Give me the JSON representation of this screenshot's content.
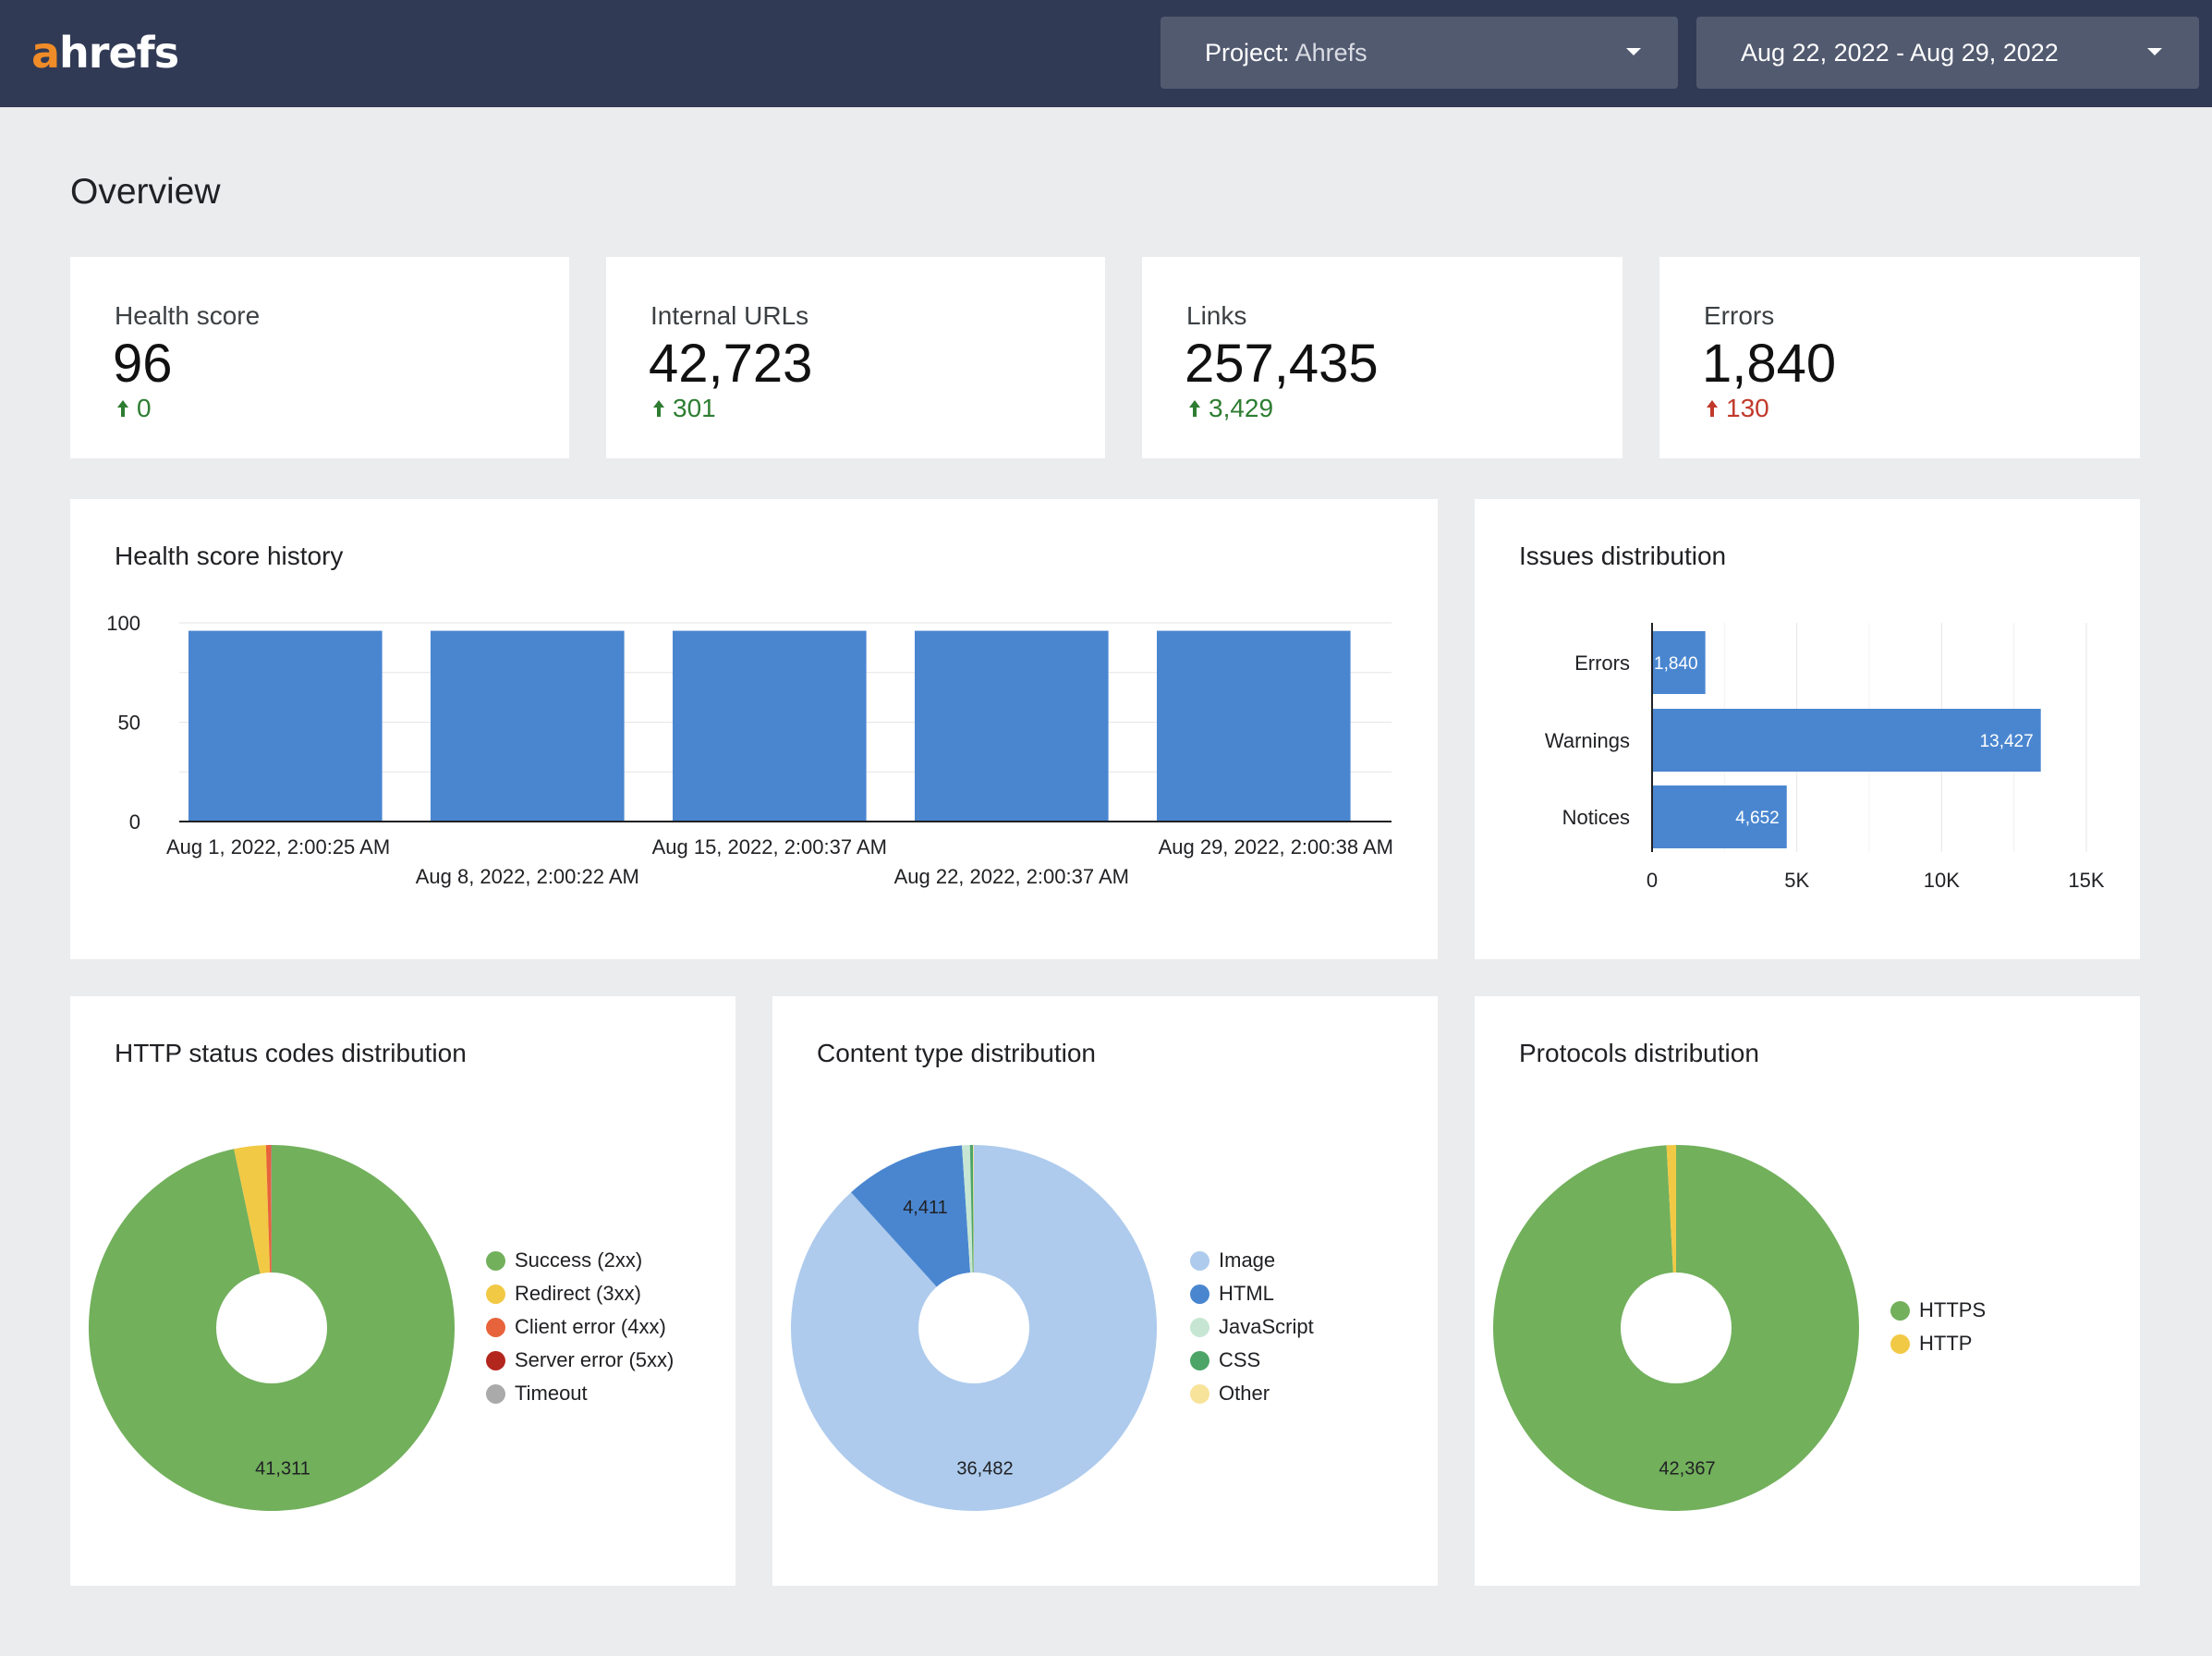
{
  "brand": {
    "logo_first": "a",
    "logo_rest": "hrefs"
  },
  "header": {
    "project_label": "Project:",
    "project_value": "Ahrefs",
    "date_range": "Aug 22, 2022 - Aug 29, 2022"
  },
  "page": {
    "title": "Overview"
  },
  "kpis": [
    {
      "label": "Health score",
      "value": "96",
      "delta": "0",
      "trend": "up"
    },
    {
      "label": "Internal URLs",
      "value": "42,723",
      "delta": "301",
      "trend": "up"
    },
    {
      "label": "Links",
      "value": "257,435",
      "delta": "3,429",
      "trend": "up"
    },
    {
      "label": "Errors",
      "value": "1,840",
      "delta": "130",
      "trend": "up"
    }
  ],
  "colors": {
    "header_bg": "#313a55",
    "dropdown_bg": "#525a70",
    "accent_orange": "#f08c28",
    "bar_blue": "#4a86d0",
    "positive": "#2e7d32",
    "negative": "#c0392b"
  },
  "chart_data": [
    {
      "type": "bar",
      "title": "Health score history",
      "categories": [
        "Aug 1, 2022, 2:00:25 AM",
        "Aug 8, 2022, 2:00:22 AM",
        "Aug 15, 2022, 2:00:37 AM",
        "Aug 22, 2022, 2:00:37 AM",
        "Aug 29, 2022, 2:00:38 AM"
      ],
      "values": [
        96,
        96,
        96,
        96,
        96
      ],
      "ylim": [
        0,
        100
      ],
      "y_ticks": [
        "0",
        "50",
        "100"
      ],
      "grid": true,
      "color": "#4a86d0"
    },
    {
      "type": "bar",
      "orientation": "horizontal",
      "title": "Issues distribution",
      "categories": [
        "Errors",
        "Warnings",
        "Notices"
      ],
      "values": [
        1840,
        13427,
        4652
      ],
      "value_labels": [
        "1,840",
        "13,427",
        "4,652"
      ],
      "xlim": [
        0,
        15000
      ],
      "x_ticks": [
        {
          "value": 0,
          "label": "0"
        },
        {
          "value": 5000,
          "label": "5K"
        },
        {
          "value": 10000,
          "label": "10K"
        },
        {
          "value": 15000,
          "label": "15K"
        }
      ],
      "grid": true,
      "color": "#4a86d0"
    },
    {
      "type": "pie",
      "title": "HTTP status codes distribution",
      "hole": true,
      "legend_position": "right",
      "slices": [
        {
          "name": "Success (2xx)",
          "value": 41311,
          "label": "41,311",
          "color": "#72b05c"
        },
        {
          "name": "Redirect (3xx)",
          "value": 1200,
          "label": "",
          "color": "#f2c945"
        },
        {
          "name": "Client error (4xx)",
          "value": 180,
          "label": "",
          "color": "#e7633b"
        },
        {
          "name": "Server error (5xx)",
          "value": 20,
          "label": "",
          "color": "#b3261e"
        },
        {
          "name": "Timeout",
          "value": 12,
          "label": "",
          "color": "#aaaaaa"
        }
      ]
    },
    {
      "type": "pie",
      "title": "Content type distribution",
      "hole": true,
      "legend_position": "right",
      "slices": [
        {
          "name": "Image",
          "value": 36482,
          "label": "36,482",
          "color": "#aecbed"
        },
        {
          "name": "HTML",
          "value": 4411,
          "label": "4,411",
          "color": "#4a86d0"
        },
        {
          "name": "JavaScript",
          "value": 290,
          "label": "",
          "color": "#c6e6d3"
        },
        {
          "name": "CSS",
          "value": 110,
          "label": "",
          "color": "#4ca567"
        },
        {
          "name": "Other",
          "value": 30,
          "label": "",
          "color": "#f8e39a"
        }
      ]
    },
    {
      "type": "pie",
      "title": "Protocols distribution",
      "hole": true,
      "legend_position": "right",
      "slices": [
        {
          "name": "HTTPS",
          "value": 42367,
          "label": "42,367",
          "color": "#72b05c"
        },
        {
          "name": "HTTP",
          "value": 356,
          "label": "",
          "color": "#f2c945"
        }
      ]
    }
  ]
}
